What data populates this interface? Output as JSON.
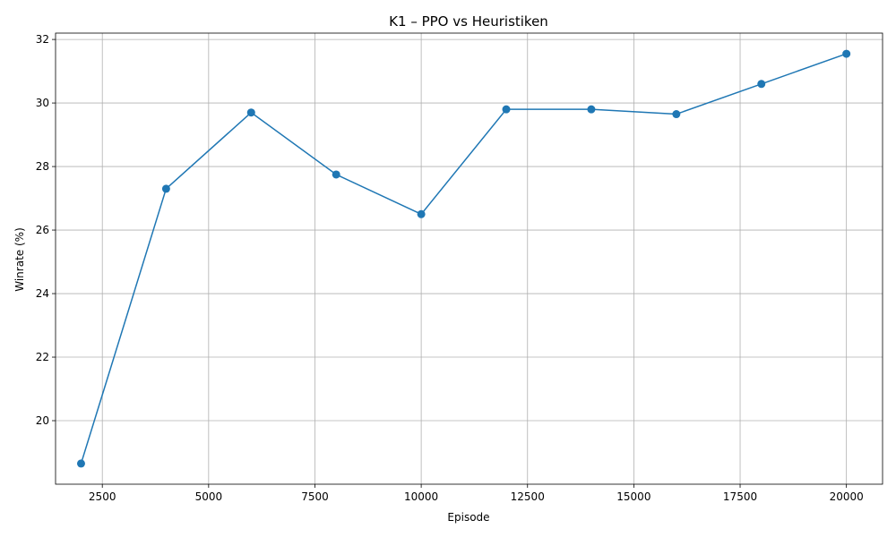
{
  "chart_data": {
    "type": "line",
    "title": "K1 – PPO vs Heuristiken",
    "xlabel": "Episode",
    "ylabel": "Winrate (%)",
    "xlim": [
      1400,
      20850
    ],
    "ylim": [
      18.0,
      32.2
    ],
    "x_ticks": [
      2500,
      5000,
      7500,
      10000,
      12500,
      15000,
      17500,
      20000
    ],
    "x_tick_labels": [
      "2500",
      "5000",
      "7500",
      "10000",
      "12500",
      "15000",
      "17500",
      "20000"
    ],
    "y_ticks": [
      20,
      22,
      24,
      26,
      28,
      30,
      32
    ],
    "y_tick_labels": [
      "20",
      "22",
      "24",
      "26",
      "28",
      "30",
      "32"
    ],
    "grid": true,
    "series": [
      {
        "color": "#1f77b4",
        "marker": "circle",
        "x": [
          2000,
          4000,
          6000,
          8000,
          10000,
          12000,
          14000,
          16000,
          18000,
          20000
        ],
        "y": [
          18.65,
          27.3,
          29.7,
          27.75,
          26.5,
          29.8,
          29.8,
          29.65,
          30.6,
          31.55
        ]
      }
    ]
  }
}
